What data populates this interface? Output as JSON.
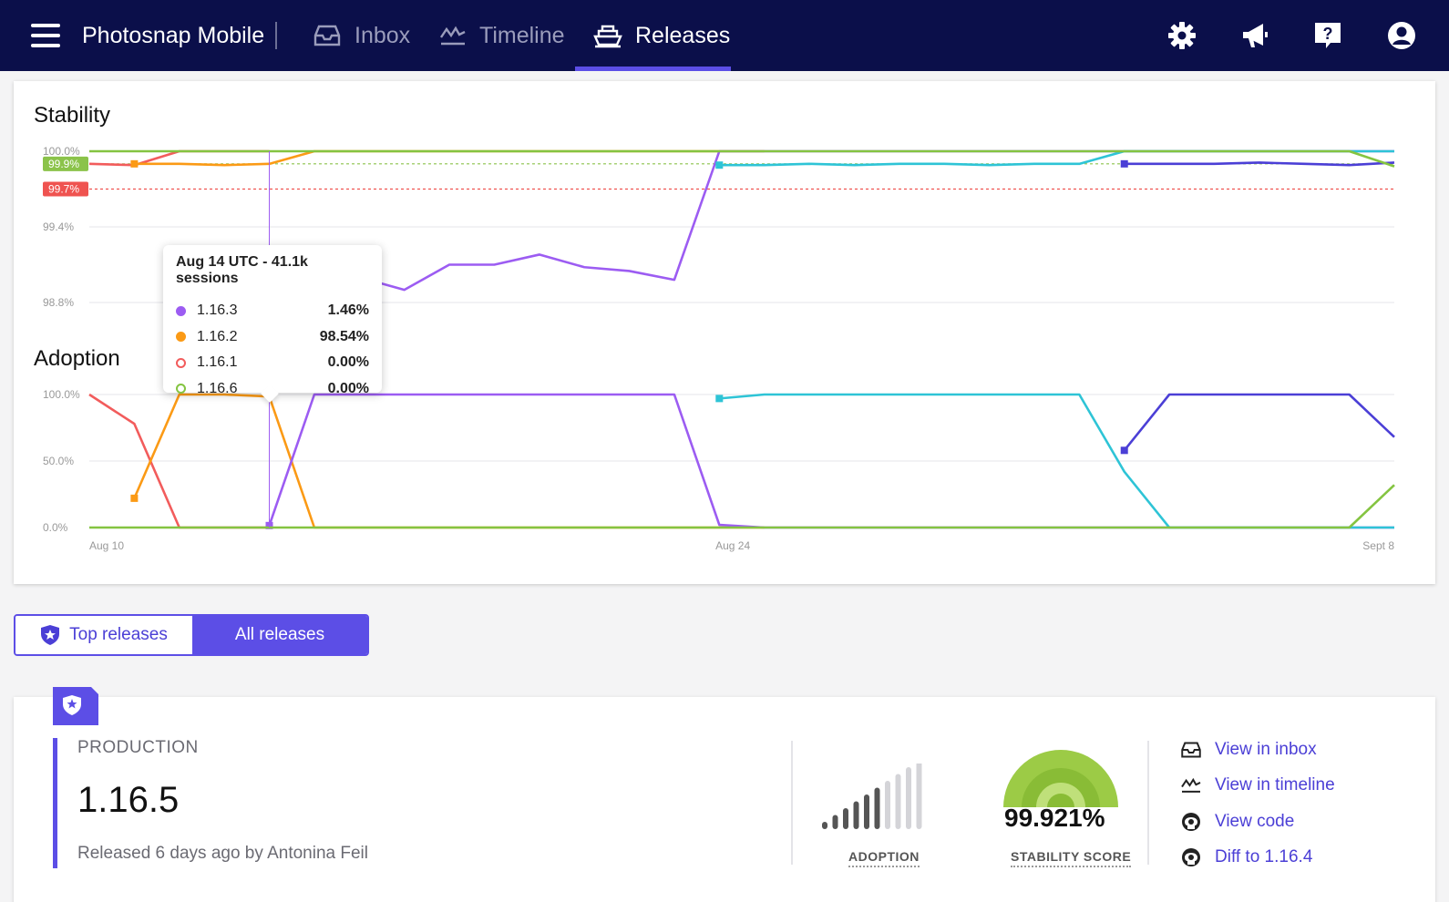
{
  "header": {
    "app_title": "Photosnap Mobile",
    "tabs": [
      {
        "label": "Inbox",
        "icon": "inbox-icon",
        "active": false
      },
      {
        "label": "Timeline",
        "icon": "timeline-icon",
        "active": false
      },
      {
        "label": "Releases",
        "icon": "releases-icon",
        "active": true
      }
    ],
    "icons": [
      "gear-icon",
      "megaphone-icon",
      "help-icon",
      "user-icon"
    ]
  },
  "stability_chart": {
    "title": "Stability",
    "y_ticks": [
      "100.0%",
      "99.4%",
      "98.8%"
    ],
    "markers": [
      {
        "label": "99.9%",
        "color": "#8bc34a"
      },
      {
        "label": "99.7%",
        "color": "#ef5350"
      }
    ]
  },
  "adoption_chart": {
    "title": "Adoption",
    "y_ticks": [
      "100.0%",
      "50.0%",
      "0.0%"
    ],
    "x_ticks": [
      "Aug 10",
      "Aug 24",
      "Sept 8"
    ]
  },
  "tooltip": {
    "title": "Aug 14 UTC - 41.1k sessions",
    "rows": [
      {
        "version": "1.16.3",
        "value": "1.46%",
        "color": "#9c5cf2",
        "filled": true
      },
      {
        "version": "1.16.2",
        "value": "98.54%",
        "color": "#fb9a15",
        "filled": true
      },
      {
        "version": "1.16.1",
        "value": "0.00%",
        "color": "#f25c5c",
        "filled": false
      },
      {
        "version": "1.16.6",
        "value": "0.00%",
        "color": "#84c441",
        "filled": false
      }
    ]
  },
  "chart_data": [
    {
      "type": "line",
      "title": "Stability",
      "ylim": [
        98.8,
        100.0
      ],
      "y_ticks": [
        100.0,
        99.4,
        98.8
      ],
      "thresholds": [
        99.9,
        99.7
      ],
      "series": [
        {
          "name": "1.16.1",
          "color": "#f25c5c",
          "x": [
            0,
            1,
            2,
            3,
            4
          ],
          "values": [
            99.9,
            99.89,
            100,
            100,
            100
          ]
        },
        {
          "name": "1.16.2",
          "color": "#fb9a15",
          "x": [
            1,
            2,
            3,
            4,
            5,
            6,
            7,
            8,
            9,
            10,
            11,
            12,
            13,
            14,
            15
          ],
          "values": [
            99.9,
            99.9,
            99.89,
            99.9,
            100,
            100,
            100,
            100,
            100,
            100,
            100,
            100,
            100,
            100,
            100
          ]
        },
        {
          "name": "1.16.3",
          "color": "#9c5cf2",
          "x": [
            4,
            5,
            6,
            7,
            8,
            9,
            10,
            11,
            12,
            13,
            14,
            15,
            16,
            17,
            18,
            19,
            20,
            21,
            22,
            23,
            24,
            25,
            26,
            27,
            28,
            29
          ],
          "values": [
            99.1,
            99.05,
            99.0,
            98.9,
            99.1,
            99.1,
            99.18,
            99.08,
            99.05,
            98.98,
            100,
            100,
            100,
            100,
            100,
            100,
            100,
            100,
            100,
            100,
            100,
            100,
            100,
            100,
            100,
            100
          ]
        },
        {
          "name": "1.16.4",
          "color": "#2ec4d6",
          "x": [
            14,
            15,
            16,
            17,
            18,
            19,
            20,
            21,
            22,
            23,
            24,
            25,
            26,
            27,
            28,
            29
          ],
          "values": [
            99.89,
            99.89,
            99.9,
            99.89,
            99.9,
            99.9,
            99.89,
            99.9,
            99.9,
            100,
            100,
            100,
            100,
            100,
            100,
            100
          ]
        },
        {
          "name": "1.16.5",
          "color": "#4b3fd6",
          "x": [
            23,
            24,
            25,
            26,
            27,
            28,
            29
          ],
          "values": [
            99.9,
            99.9,
            99.9,
            99.91,
            99.9,
            99.89,
            99.91
          ]
        },
        {
          "name": "1.16.6",
          "color": "#84c441",
          "x": [
            0,
            26,
            27,
            28,
            29
          ],
          "values": [
            100,
            100,
            100,
            100,
            99.88
          ]
        }
      ]
    },
    {
      "type": "line",
      "title": "Adoption",
      "ylim": [
        0,
        100
      ],
      "y_ticks": [
        100.0,
        50.0,
        0.0
      ],
      "x_ticks": [
        "Aug 10",
        "Aug 24",
        "Sept 8"
      ],
      "series": [
        {
          "name": "1.16.1",
          "color": "#f25c5c",
          "x": [
            0,
            1,
            2,
            3,
            4
          ],
          "values": [
            100,
            78,
            0,
            0,
            0
          ]
        },
        {
          "name": "1.16.2",
          "color": "#fb9a15",
          "x": [
            1,
            2,
            3,
            4,
            5,
            6,
            7,
            8,
            9,
            10,
            11,
            12,
            13,
            14,
            15
          ],
          "values": [
            22,
            100,
            100,
            98.5,
            0,
            0,
            0,
            0,
            0,
            0,
            0,
            0,
            0,
            0,
            0
          ]
        },
        {
          "name": "1.16.3",
          "color": "#9c5cf2",
          "x": [
            4,
            5,
            6,
            7,
            8,
            9,
            10,
            11,
            12,
            13,
            14,
            15,
            16,
            17,
            18,
            19,
            20,
            21,
            22,
            23,
            24,
            25,
            26,
            27,
            28,
            29
          ],
          "values": [
            1.5,
            100,
            100,
            100,
            100,
            100,
            100,
            100,
            100,
            100,
            2,
            0,
            0,
            0,
            0,
            0,
            0,
            0,
            0,
            0,
            0,
            0,
            0,
            0,
            0,
            0
          ]
        },
        {
          "name": "1.16.4",
          "color": "#2ec4d6",
          "x": [
            14,
            15,
            16,
            17,
            18,
            19,
            20,
            21,
            22,
            23,
            24,
            25,
            26,
            27,
            28,
            29
          ],
          "values": [
            97,
            100,
            100,
            100,
            100,
            100,
            100,
            100,
            100,
            42,
            0,
            0,
            0,
            0,
            0,
            0
          ]
        },
        {
          "name": "1.16.5",
          "color": "#4b3fd6",
          "x": [
            23,
            24,
            25,
            26,
            27,
            28,
            29
          ],
          "values": [
            58,
            100,
            100,
            100,
            100,
            100,
            68
          ]
        },
        {
          "name": "1.16.6",
          "color": "#84c441",
          "x": [
            0,
            26,
            27,
            28,
            29
          ],
          "values": [
            0,
            0,
            0,
            0,
            32
          ]
        }
      ]
    }
  ],
  "toggle": {
    "top_label": "Top releases",
    "all_label": "All releases"
  },
  "release": {
    "env": "PRODUCTION",
    "version": "1.16.5",
    "released": "Released 6 days ago by Antonina Feil",
    "adoption_label": "ADOPTION",
    "adoption_level": 6,
    "adoption_bars": 10,
    "stability_score": "99.921%",
    "stability_label": "STABILITY SCORE",
    "links": [
      {
        "label": "View in inbox",
        "icon": "inbox-icon"
      },
      {
        "label": "View in timeline",
        "icon": "timeline-icon"
      },
      {
        "label": "View code",
        "icon": "github-icon"
      },
      {
        "label": "Diff to 1.16.4",
        "icon": "github-icon"
      }
    ]
  }
}
